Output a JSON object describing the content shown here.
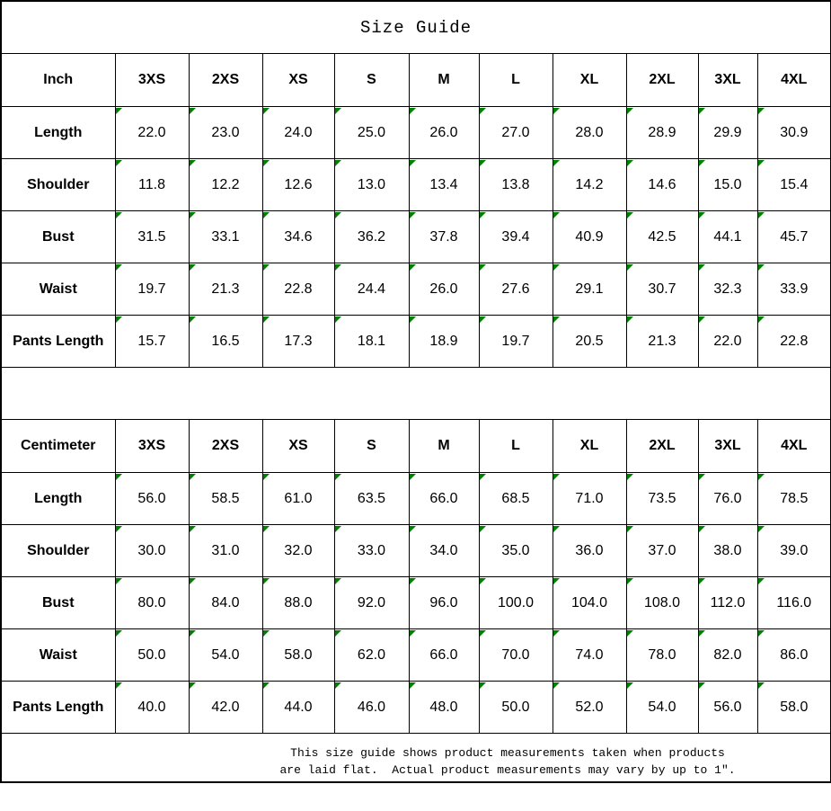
{
  "title": "Size Guide",
  "footer_lines": [
    "This size guide shows product measurements taken when products",
    "are laid flat.  Actual product measurements may vary by up to 1″."
  ],
  "colors": {
    "background": "#ffffff",
    "border": "#000000",
    "text": "#000000",
    "cell_marker_green": "#008000"
  },
  "cell_marker": {
    "icon": "green-triangle-icon",
    "color": "#008000"
  },
  "chart_data": [
    {
      "type": "table",
      "unit_header": "Inch",
      "columns": [
        "3XS",
        "2XS",
        "XS",
        "S",
        "M",
        "L",
        "XL",
        "2XL",
        "3XL",
        "4XL"
      ],
      "rows": [
        {
          "label": "Length",
          "values": [
            "22.0",
            "23.0",
            "24.0",
            "25.0",
            "26.0",
            "27.0",
            "28.0",
            "28.9",
            "29.9",
            "30.9"
          ]
        },
        {
          "label": "Shoulder",
          "values": [
            "11.8",
            "12.2",
            "12.6",
            "13.0",
            "13.4",
            "13.8",
            "14.2",
            "14.6",
            "15.0",
            "15.4"
          ]
        },
        {
          "label": "Bust",
          "values": [
            "31.5",
            "33.1",
            "34.6",
            "36.2",
            "37.8",
            "39.4",
            "40.9",
            "42.5",
            "44.1",
            "45.7"
          ]
        },
        {
          "label": "Waist",
          "values": [
            "19.7",
            "21.3",
            "22.8",
            "24.4",
            "26.0",
            "27.6",
            "29.1",
            "30.7",
            "32.3",
            "33.9"
          ]
        },
        {
          "label": "Pants Length",
          "values": [
            "15.7",
            "16.5",
            "17.3",
            "18.1",
            "18.9",
            "19.7",
            "20.5",
            "21.3",
            "22.0",
            "22.8"
          ]
        }
      ]
    },
    {
      "type": "table",
      "unit_header": "Centimeter",
      "columns": [
        "3XS",
        "2XS",
        "XS",
        "S",
        "M",
        "L",
        "XL",
        "2XL",
        "3XL",
        "4XL"
      ],
      "rows": [
        {
          "label": "Length",
          "values": [
            "56.0",
            "58.5",
            "61.0",
            "63.5",
            "66.0",
            "68.5",
            "71.0",
            "73.5",
            "76.0",
            "78.5"
          ]
        },
        {
          "label": "Shoulder",
          "values": [
            "30.0",
            "31.0",
            "32.0",
            "33.0",
            "34.0",
            "35.0",
            "36.0",
            "37.0",
            "38.0",
            "39.0"
          ]
        },
        {
          "label": "Bust",
          "values": [
            "80.0",
            "84.0",
            "88.0",
            "92.0",
            "96.0",
            "100.0",
            "104.0",
            "108.0",
            "112.0",
            "116.0"
          ]
        },
        {
          "label": "Waist",
          "values": [
            "50.0",
            "54.0",
            "58.0",
            "62.0",
            "66.0",
            "70.0",
            "74.0",
            "78.0",
            "82.0",
            "86.0"
          ]
        },
        {
          "label": "Pants Length",
          "values": [
            "40.0",
            "42.0",
            "44.0",
            "46.0",
            "48.0",
            "50.0",
            "52.0",
            "54.0",
            "56.0",
            "58.0"
          ]
        }
      ]
    }
  ]
}
